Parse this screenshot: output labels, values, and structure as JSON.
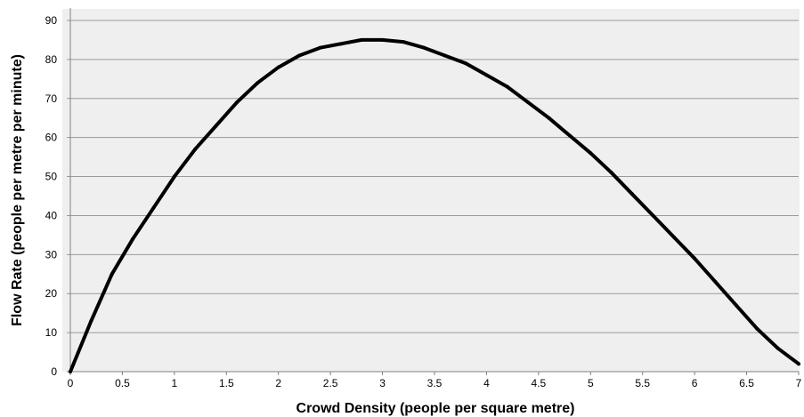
{
  "chart_data": {
    "type": "line",
    "title": "",
    "xlabel": "Crowd Density (people per square metre)",
    "ylabel": "Flow Rate (people per metre per minute)",
    "xlim": [
      0,
      7
    ],
    "ylim": [
      0,
      90
    ],
    "x_ticks": [
      0,
      0.5,
      1,
      1.5,
      2,
      2.5,
      3,
      3.5,
      4,
      4.5,
      5,
      5.5,
      6,
      6.5,
      7
    ],
    "x_tick_labels": [
      "0",
      "0.5",
      "1",
      "1.5",
      "2",
      "2.5",
      "3",
      "3.5",
      "4",
      "4.5",
      "5",
      "5.5",
      "6",
      "6.5",
      "7"
    ],
    "y_ticks": [
      0,
      10,
      20,
      30,
      40,
      50,
      60,
      70,
      80,
      90
    ],
    "y_tick_labels": [
      "0",
      "10",
      "20",
      "30",
      "40",
      "50",
      "60",
      "70",
      "80",
      "90"
    ],
    "grid": "horizontal",
    "legend": "none",
    "series": [
      {
        "line_color": "#000000",
        "x": [
          0,
          0.2,
          0.4,
          0.6,
          0.8,
          1.0,
          1.2,
          1.4,
          1.6,
          1.8,
          2.0,
          2.2,
          2.4,
          2.6,
          2.8,
          3.0,
          3.2,
          3.4,
          3.6,
          3.8,
          4.0,
          4.2,
          4.4,
          4.6,
          4.8,
          5.0,
          5.2,
          5.4,
          5.6,
          5.8,
          6.0,
          6.2,
          6.4,
          6.6,
          6.8,
          7.0
        ],
        "y": [
          0,
          13,
          25,
          34,
          42,
          50,
          57,
          63,
          69,
          74,
          78,
          81,
          83,
          84,
          85,
          85,
          84.5,
          83,
          81,
          79,
          76,
          73,
          69,
          65,
          60.5,
          56,
          51,
          45.5,
          40,
          34.5,
          29,
          23,
          17,
          11,
          6,
          2
        ]
      }
    ]
  }
}
